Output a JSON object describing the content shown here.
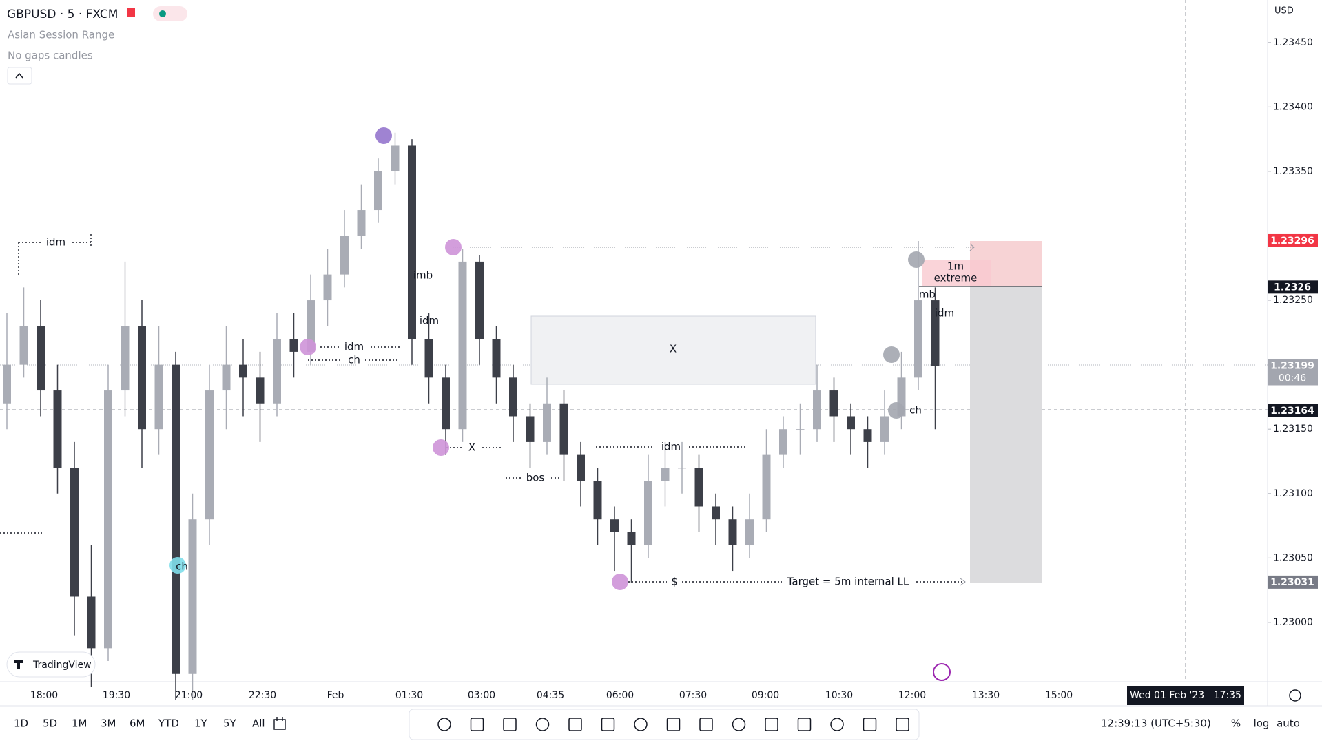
{
  "header": {
    "symbol": "GBPUSD · 5 · FXCM",
    "indicators": [
      "Asian Session Range",
      "No gaps candles"
    ],
    "currency": "USD",
    "logo": "TradingView"
  },
  "chart_data": {
    "type": "candlestick",
    "up_color": "#a9acb5",
    "down_color": "#3c3f48",
    "ohlc": [
      [
        1.2317,
        1.2324,
        1.2315,
        1.232
      ],
      [
        1.232,
        1.2326,
        1.2319,
        1.2323
      ],
      [
        1.2323,
        1.2325,
        1.2316,
        1.2318
      ],
      [
        1.2318,
        1.232,
        1.231,
        1.2312
      ],
      [
        1.2312,
        1.2314,
        1.2299,
        1.2302
      ],
      [
        1.2302,
        1.2306,
        1.2295,
        1.2298
      ],
      [
        1.2298,
        1.232,
        1.2297,
        1.2318
      ],
      [
        1.2318,
        1.2328,
        1.2316,
        1.2323
      ],
      [
        1.2323,
        1.2325,
        1.2312,
        1.2315
      ],
      [
        1.2315,
        1.2323,
        1.2313,
        1.232
      ],
      [
        1.232,
        1.2321,
        1.2294,
        1.2296
      ],
      [
        1.2296,
        1.231,
        1.2294,
        1.2308
      ],
      [
        1.2308,
        1.232,
        1.2306,
        1.2318
      ],
      [
        1.2318,
        1.2323,
        1.2315,
        1.232
      ],
      [
        1.232,
        1.2322,
        1.2316,
        1.2319
      ],
      [
        1.2319,
        1.2321,
        1.2314,
        1.2317
      ],
      [
        1.2317,
        1.2324,
        1.2316,
        1.2322
      ],
      [
        1.2322,
        1.2324,
        1.2319,
        1.2321
      ],
      [
        1.2321,
        1.2327,
        1.232,
        1.2325
      ],
      [
        1.2325,
        1.2329,
        1.2323,
        1.2327
      ],
      [
        1.2327,
        1.2332,
        1.2326,
        1.233
      ],
      [
        1.233,
        1.2334,
        1.2329,
        1.2332
      ],
      [
        1.2332,
        1.2336,
        1.2331,
        1.2335
      ],
      [
        1.2335,
        1.2338,
        1.2334,
        1.2337
      ],
      [
        1.2337,
        1.23375,
        1.232,
        1.2322
      ],
      [
        1.2322,
        1.2324,
        1.2317,
        1.2319
      ],
      [
        1.2319,
        1.232,
        1.2313,
        1.2315
      ],
      [
        1.2315,
        1.2329,
        1.2314,
        1.2328
      ],
      [
        1.2328,
        1.23285,
        1.232,
        1.2322
      ],
      [
        1.2322,
        1.2323,
        1.2317,
        1.2319
      ],
      [
        1.2319,
        1.232,
        1.2314,
        1.2316
      ],
      [
        1.2316,
        1.2317,
        1.2312,
        1.2314
      ],
      [
        1.2314,
        1.2319,
        1.2313,
        1.2317
      ],
      [
        1.2317,
        1.2318,
        1.2311,
        1.2313
      ],
      [
        1.2313,
        1.2314,
        1.2309,
        1.2311
      ],
      [
        1.2311,
        1.2312,
        1.2306,
        1.2308
      ],
      [
        1.2308,
        1.2309,
        1.2304,
        1.2307
      ],
      [
        1.2307,
        1.2308,
        1.23031,
        1.2306
      ],
      [
        1.2306,
        1.2313,
        1.2305,
        1.2311
      ],
      [
        1.2311,
        1.2314,
        1.2309,
        1.2312
      ],
      [
        1.2312,
        1.2314,
        1.231,
        1.2312
      ],
      [
        1.2312,
        1.2313,
        1.2307,
        1.2309
      ],
      [
        1.2309,
        1.231,
        1.2306,
        1.2308
      ],
      [
        1.2308,
        1.2309,
        1.2304,
        1.2306
      ],
      [
        1.2306,
        1.231,
        1.2305,
        1.2308
      ],
      [
        1.2308,
        1.2315,
        1.2307,
        1.2313
      ],
      [
        1.2313,
        1.2316,
        1.2312,
        1.2315
      ],
      [
        1.2315,
        1.2317,
        1.2313,
        1.2315
      ],
      [
        1.2315,
        1.232,
        1.2314,
        1.2318
      ],
      [
        1.2318,
        1.2319,
        1.2314,
        1.2316
      ],
      [
        1.2316,
        1.2317,
        1.2313,
        1.2315
      ],
      [
        1.2315,
        1.2316,
        1.2312,
        1.2314
      ],
      [
        1.2314,
        1.2318,
        1.2313,
        1.2316
      ],
      [
        1.2316,
        1.2321,
        1.2315,
        1.2319
      ],
      [
        1.2319,
        1.23296,
        1.2318,
        1.2325
      ],
      [
        1.2325,
        1.2326,
        1.2315,
        1.23199
      ]
    ],
    "ylim": [
      1.22954,
      1.23483
    ],
    "yticks": [
      {
        "value": 1.23,
        "label": "1.23000"
      },
      {
        "value": 1.2305,
        "label": "1.23050"
      },
      {
        "value": 1.231,
        "label": "1.23100"
      },
      {
        "value": 1.2315,
        "label": "1.23150"
      },
      {
        "value": 1.2325,
        "label": "1.23250"
      },
      {
        "value": 1.2335,
        "label": "1.23350"
      },
      {
        "value": 1.234,
        "label": "1.23400"
      },
      {
        "value": 1.2345,
        "label": "1.23450"
      }
    ],
    "price_tags": [
      {
        "value": 1.23296,
        "color": "#f23645"
      },
      {
        "value": 1.2326,
        "color": "#131722"
      },
      {
        "value": 1.23199,
        "color": "#a3a6af",
        "sub": "00:46"
      },
      {
        "value": 1.23164,
        "color": "#131722"
      },
      {
        "value": 1.23031,
        "color": "#787b86"
      }
    ],
    "x_labels": [
      "18:00",
      "19:30",
      "21:00",
      "22:30",
      "Feb",
      "01:30",
      "03:00",
      "04:35",
      "06:00",
      "07:30",
      "09:00",
      "10:30",
      "12:00",
      "13:30",
      "15:00"
    ],
    "annotations": [
      "idm",
      "imb",
      "idm",
      "idm",
      "ch",
      "X",
      "bos",
      "idm",
      "$",
      "Target = 5m internal LL",
      "X",
      "1m",
      "extreme",
      "mb",
      "idm",
      "ch",
      "ch"
    ]
  },
  "footer": {
    "ranges": [
      "1D",
      "5D",
      "1M",
      "3M",
      "6M",
      "YTD",
      "1Y",
      "5Y",
      "All"
    ],
    "cursor_time": "Wed 01 Feb '23   17:35",
    "clock": "12:39:13 (UTC+5:30)",
    "toggles": [
      "%",
      "log",
      "auto"
    ]
  }
}
